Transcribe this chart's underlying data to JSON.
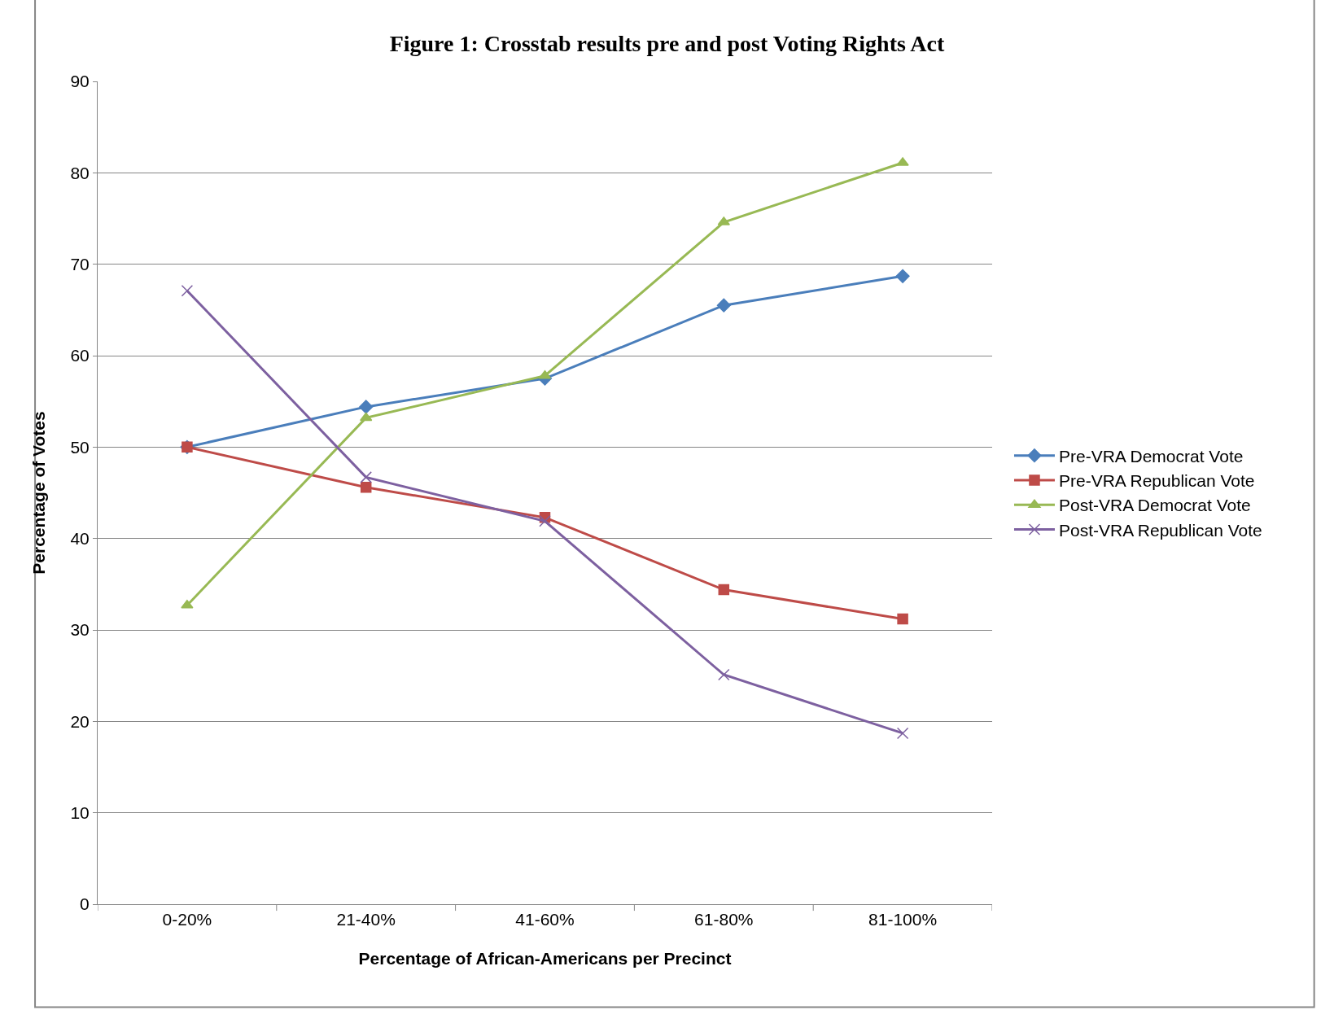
{
  "chart_data": {
    "type": "line",
    "title": "Figure 1: Crosstab results pre and post Voting Rights Act",
    "xlabel": "Percentage of African-Americans per Precinct",
    "ylabel": "Percentage of Votes",
    "categories": [
      "0-20%",
      "21-40%",
      "41-60%",
      "61-80%",
      "81-100%"
    ],
    "series": [
      {
        "name": "Pre-VRA Democrat Vote",
        "color": "#4a7ebb",
        "marker": "diamond",
        "values": [
          50.0,
          54.4,
          57.5,
          65.5,
          68.7
        ]
      },
      {
        "name": "Pre-VRA Republican Vote",
        "color": "#be4b48",
        "marker": "square",
        "values": [
          50.0,
          45.6,
          42.3,
          34.4,
          31.2
        ]
      },
      {
        "name": "Post-VRA Democrat Vote",
        "color": "#98b954",
        "marker": "triangle",
        "values": [
          32.7,
          53.2,
          57.8,
          74.6,
          81.1
        ]
      },
      {
        "name": "Post-VRA Republican Vote",
        "color": "#7d60a0",
        "marker": "cross",
        "values": [
          67.1,
          46.7,
          41.9,
          25.1,
          18.7
        ]
      }
    ],
    "ylim": [
      0,
      90
    ],
    "yticks": [
      0,
      10,
      20,
      30,
      40,
      50,
      60,
      70,
      80,
      90
    ],
    "grid": "y",
    "legend": "right",
    "line_style": "solid"
  }
}
